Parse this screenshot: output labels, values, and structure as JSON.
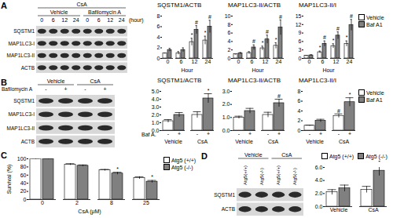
{
  "chart_data": [
    {
      "type": "bar",
      "title": "SQSTM1/ACTB",
      "categories": [
        "0",
        "6",
        "12",
        "24"
      ],
      "xlabel": "Hour",
      "ylim": [
        0,
        8
      ],
      "yticks": [
        0,
        2,
        4,
        6,
        8
      ],
      "series": [
        {
          "name": "Vehicle",
          "color": "#ffffff",
          "values": [
            1,
            1,
            3.1,
            3.4
          ],
          "errors": [
            0,
            0.3,
            0.7,
            0.8
          ]
        },
        {
          "name": "Baf A1",
          "color": "#808080",
          "values": [
            1.6,
            1.6,
            5.4,
            6
          ],
          "errors": [
            0.3,
            0.4,
            0.8,
            1.2
          ]
        }
      ],
      "annotations": [
        {
          "series": "Vehicle",
          "category": "12",
          "text": "*"
        },
        {
          "series": "Vehicle",
          "category": "24",
          "text": "*"
        },
        {
          "series": "Baf A1",
          "category": "12",
          "text": "#"
        },
        {
          "series": "Baf A1",
          "category": "24",
          "text": "#"
        }
      ]
    },
    {
      "type": "bar",
      "title": "MAP1LC3-II/ACTB",
      "categories": [
        "0",
        "6",
        "12",
        "24"
      ],
      "xlabel": "Hour",
      "ylim": [
        0,
        10
      ],
      "yticks": [
        0,
        2,
        4,
        6,
        8,
        10
      ],
      "series": [
        {
          "name": "Vehicle",
          "color": "#ffffff",
          "values": [
            1,
            1.3,
            2.4,
            3
          ],
          "errors": [
            0,
            0.3,
            0.5,
            0.7
          ]
        },
        {
          "name": "Baf A1",
          "color": "#808080",
          "values": [
            1.2,
            2.6,
            4.5,
            7.3
          ],
          "errors": [
            0.2,
            0.6,
            1,
            1.8
          ]
        }
      ],
      "annotations": [
        {
          "series": "Vehicle",
          "category": "12",
          "text": "*"
        },
        {
          "series": "Vehicle",
          "category": "24",
          "text": "*"
        },
        {
          "series": "Baf A1",
          "category": "6",
          "text": "#"
        },
        {
          "series": "Baf A1",
          "category": "12",
          "text": "#"
        },
        {
          "series": "Baf A1",
          "category": "24",
          "text": "#"
        }
      ]
    },
    {
      "type": "bar",
      "title": "MAP1LC3-II/I",
      "categories": [
        "0",
        "6",
        "12",
        "24"
      ],
      "xlabel": "Hour",
      "ylim": [
        0,
        15
      ],
      "yticks": [
        0,
        3,
        6,
        9,
        12,
        15
      ],
      "legend": "top-right",
      "series": [
        {
          "name": "Vehicle",
          "color": "#ffffff",
          "values": [
            1,
            2.2,
            4.4,
            5.2
          ],
          "errors": [
            0,
            0.4,
            0.8,
            1
          ]
        },
        {
          "name": "Baf A1",
          "color": "#808080",
          "values": [
            1.1,
            5.2,
            8.1,
            11.8
          ],
          "errors": [
            0.2,
            1,
            1.3,
            2
          ]
        }
      ],
      "annotations": [
        {
          "series": "Vehicle",
          "category": "6",
          "text": "*"
        },
        {
          "series": "Vehicle",
          "category": "12",
          "text": "*"
        },
        {
          "series": "Vehicle",
          "category": "24",
          "text": "*"
        },
        {
          "series": "Baf A1",
          "category": "6",
          "text": "#"
        },
        {
          "series": "Baf A1",
          "category": "12",
          "text": "#"
        },
        {
          "series": "Baf A1",
          "category": "24",
          "text": "#"
        }
      ]
    },
    {
      "type": "bar",
      "title": "SQSTM1/ACTB",
      "categories": [
        "Vehicle",
        "CsA"
      ],
      "group_title": "Baf A.",
      "group_labels": [
        "-",
        "+"
      ],
      "ylim": [
        0,
        5
      ],
      "yticks": [
        0,
        1,
        2,
        3,
        4,
        5
      ],
      "series": [
        {
          "name": "Vehicle",
          "color": "#ffffff",
          "values": [
            1.2,
            2
          ],
          "errors": [
            0.2,
            0.4
          ]
        },
        {
          "name": "Baf A1",
          "color": "#808080",
          "values": [
            2,
            4.1
          ],
          "errors": [
            0.3,
            0.6
          ]
        }
      ],
      "annotations": [
        {
          "series": "Baf A1",
          "category": "CsA",
          "text": "*"
        }
      ]
    },
    {
      "type": "bar",
      "title": "MAP1LC3-II/ACTB",
      "categories": [
        "Vehicle",
        "CsA"
      ],
      "group_labels": [
        "-",
        "+"
      ],
      "ylim": [
        0,
        3
      ],
      "yticks": [
        0,
        1,
        2,
        3
      ],
      "series": [
        {
          "name": "Vehicle",
          "color": "#ffffff",
          "values": [
            1,
            1.2
          ],
          "errors": [
            0.1,
            0.2
          ]
        },
        {
          "name": "Baf A1",
          "color": "#808080",
          "values": [
            1.5,
            2.1
          ],
          "errors": [
            0.2,
            0.3
          ]
        }
      ],
      "annotations": [
        {
          "series": "Baf A1",
          "category": "CsA",
          "text": "#"
        }
      ]
    },
    {
      "type": "bar",
      "title": "MAP1LC3-II/I",
      "categories": [
        "Vehicle",
        "CsA"
      ],
      "group_labels": [
        "-",
        "+"
      ],
      "ylim": [
        0,
        8
      ],
      "yticks": [
        0,
        2,
        4,
        6,
        8
      ],
      "legend": "top-right",
      "series": [
        {
          "name": "Vehicle",
          "color": "#ffffff",
          "values": [
            1,
            3
          ],
          "errors": [
            0.1,
            0.4
          ]
        },
        {
          "name": "Baf A1",
          "color": "#808080",
          "values": [
            2,
            5.8
          ],
          "errors": [
            0.3,
            0.9
          ]
        }
      ],
      "annotations": [
        {
          "series": "Baf A1",
          "category": "CsA",
          "text": "*"
        },
        {
          "series": "Vehicle",
          "category": "CsA",
          "text": "#"
        }
      ]
    },
    {
      "type": "bar",
      "panel": "C",
      "ylabel": "Survival (%)",
      "xlabel": "CsA (μM)",
      "categories": [
        "0",
        "2",
        "8",
        "25"
      ],
      "ylim": [
        0,
        100
      ],
      "yticks": [
        0,
        20,
        40,
        60,
        80,
        100
      ],
      "legend": "top-right",
      "series": [
        {
          "name": "Atg5 (+/+)",
          "color": "#ffffff",
          "values": [
            100,
            86,
            72,
            53
          ],
          "errors": [
            1,
            2,
            2,
            3
          ]
        },
        {
          "name": "Atg5 (-/-)",
          "color": "#808080",
          "values": [
            100,
            83,
            64,
            44
          ],
          "errors": [
            1,
            2,
            3,
            3
          ]
        }
      ],
      "annotations": [
        {
          "series": "Atg5 (-/-)",
          "category": "8",
          "text": "*"
        },
        {
          "series": "Atg5 (-/-)",
          "category": "25",
          "text": "*"
        }
      ]
    },
    {
      "type": "bar",
      "categories": [
        "Vehicle",
        "CsA"
      ],
      "ylim": [
        0,
        6
      ],
      "yticks": [
        0,
        2,
        4,
        6
      ],
      "legend": "top-left",
      "series": [
        {
          "name": "Atg5 (+/+)",
          "color": "#ffffff",
          "values": [
            2.2,
            2.6
          ],
          "errors": [
            0.4,
            0.5
          ]
        },
        {
          "name": "Atg5 (-/-)",
          "color": "#808080",
          "values": [
            2.8,
            5.5
          ],
          "errors": [
            0.5,
            0.8
          ]
        }
      ],
      "annotations": [
        {
          "series": "Atg5 (-/-)",
          "category": "CsA",
          "text": "*"
        }
      ]
    }
  ],
  "blots": [
    {
      "panel": "A",
      "header": "CsA",
      "groups": [
        "Vehicle",
        "Bafilomycin A"
      ],
      "lanes": [
        "0",
        "6",
        "12",
        "24",
        "0",
        "6",
        "12",
        "24"
      ],
      "lane_unit": "(hour)",
      "rows": [
        "SQSTM1",
        "MAP1LC3-I",
        "MAP1LC3-II",
        "ACTB"
      ]
    },
    {
      "panel": "B",
      "groups": [
        "Vehicle",
        "CsA"
      ],
      "lane_title": "Bafilomycin A",
      "lanes": [
        "-",
        "+",
        "-",
        "+"
      ],
      "rows": [
        "SQSTM1",
        "MAP1LC3-I",
        "MAP1LC3-II",
        "ACTB"
      ]
    },
    {
      "panel": "D",
      "groups": [
        "Vehicle",
        "CsA"
      ],
      "lanes": [
        "Atg5(+/+)",
        "Atg5(-/-)",
        "Atg5(+/+)",
        "Atg5(-/-)"
      ],
      "rows": [
        "SQSTM1",
        "ACTB"
      ]
    }
  ]
}
